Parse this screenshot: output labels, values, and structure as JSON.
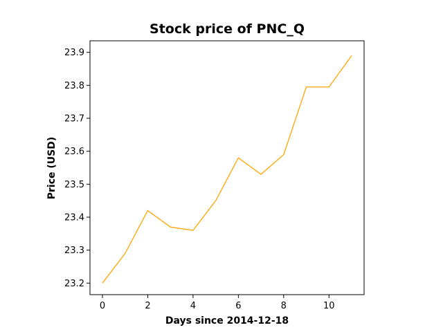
{
  "chart_data": {
    "type": "line",
    "title": "Stock price of PNC_Q",
    "xlabel": "Days since 2014-12-18",
    "ylabel": "Price (USD)",
    "xlim": [
      -0.55,
      11.55
    ],
    "ylim": [
      23.165,
      23.935
    ],
    "xticks": [
      0,
      2,
      4,
      6,
      8,
      10
    ],
    "yticks": [
      23.2,
      23.3,
      23.4,
      23.5,
      23.6,
      23.7,
      23.8,
      23.9
    ],
    "grid": false,
    "series": [
      {
        "color": "#ffa500",
        "x": [
          0,
          1,
          2,
          3,
          4,
          5,
          6,
          7,
          8,
          9,
          10,
          11
        ],
        "y": [
          23.2,
          23.29,
          23.42,
          23.37,
          23.36,
          23.45,
          23.58,
          23.53,
          23.59,
          23.795,
          23.795,
          23.89
        ]
      }
    ]
  }
}
